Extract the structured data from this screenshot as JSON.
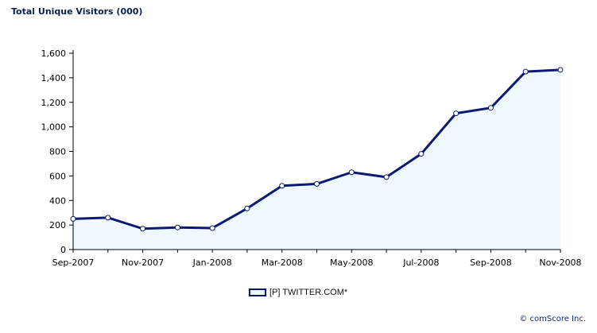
{
  "chart_data": {
    "type": "area",
    "title": "Total Unique Visitors (000)",
    "xlabel": "",
    "ylabel": "",
    "x": [
      "Sep-2007",
      "Oct-2007",
      "Nov-2007",
      "Dec-2007",
      "Jan-2008",
      "Feb-2008",
      "Mar-2008",
      "Apr-2008",
      "May-2008",
      "Jun-2008",
      "Jul-2008",
      "Aug-2008",
      "Sep-2008",
      "Oct-2008",
      "Nov-2008"
    ],
    "x_tick_labels": [
      "Sep-2007",
      "Nov-2007",
      "Jan-2008",
      "Mar-2008",
      "May-2008",
      "Jul-2008",
      "Sep-2008",
      "Nov-2008"
    ],
    "y_tick_labels": [
      "0",
      "200",
      "400",
      "600",
      "800",
      "1,000",
      "1,200",
      "1,400",
      "1,600"
    ],
    "ylim": [
      0,
      1600
    ],
    "series": [
      {
        "name": "[P] TWITTER.COM*",
        "values": [
          250,
          260,
          170,
          180,
          175,
          335,
          520,
          535,
          630,
          590,
          780,
          1110,
          1155,
          1450,
          1465
        ]
      }
    ],
    "grid": false,
    "legend_position": "bottom"
  },
  "footer": {
    "copyright": "© comScore Inc."
  },
  "colors": {
    "line": "#0b1a73",
    "fill": "#eef8fd",
    "marker_stroke": "#0b1a73",
    "marker_fill": "#ffffff",
    "axis": "#000000"
  }
}
